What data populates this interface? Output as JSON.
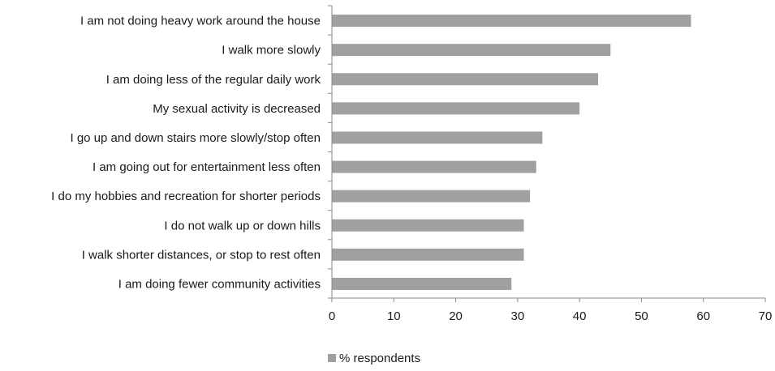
{
  "chart_data": {
    "type": "bar",
    "orientation": "horizontal",
    "categories": [
      "I am not doing heavy work around the house",
      "I walk more slowly",
      "I am doing less of the regular daily work",
      "My sexual activity is decreased",
      "I go up and down stairs more slowly/stop often",
      "I am going out for entertainment less often",
      "I do my hobbies and recreation for shorter periods",
      "I do not walk up or down hills",
      "I walk shorter distances, or stop to rest often",
      "I am doing fewer community activities"
    ],
    "series": [
      {
        "name": "% respondents",
        "values": [
          58,
          45,
          43,
          40,
          34,
          33,
          32,
          31,
          31,
          29
        ],
        "color": "#a0a0a3"
      }
    ],
    "xlim": [
      0,
      70
    ],
    "xticks": [
      0,
      10,
      20,
      30,
      40,
      50,
      60,
      70
    ],
    "xlabel": "",
    "ylabel": "",
    "title": "",
    "grid": false,
    "legend_position": "bottom-left"
  }
}
